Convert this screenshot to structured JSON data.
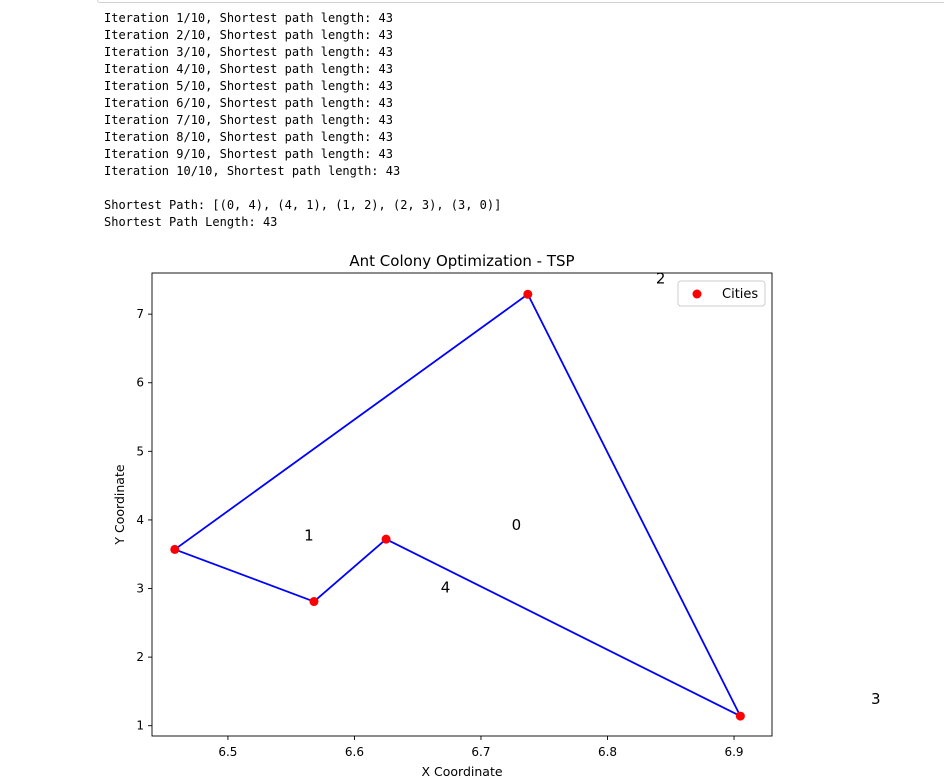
{
  "log": {
    "lines": [
      "Iteration 1/10, Shortest path length: 43",
      "Iteration 2/10, Shortest path length: 43",
      "Iteration 3/10, Shortest path length: 43",
      "Iteration 4/10, Shortest path length: 43",
      "Iteration 5/10, Shortest path length: 43",
      "Iteration 6/10, Shortest path length: 43",
      "Iteration 7/10, Shortest path length: 43",
      "Iteration 8/10, Shortest path length: 43",
      "Iteration 9/10, Shortest path length: 43",
      "Iteration 10/10, Shortest path length: 43",
      "",
      "Shortest Path: [(0, 4), (4, 1), (1, 2), (2, 3), (3, 0)]",
      "Shortest Path Length: 43"
    ]
  },
  "chart_data": {
    "type": "scatter",
    "title": "Ant Colony Optimization - TSP",
    "xlabel": "X Coordinate",
    "ylabel": "Y Coordinate",
    "xlim": [
      6.44,
      6.93
    ],
    "ylim": [
      0.85,
      7.6
    ],
    "xticks": [
      6.5,
      6.6,
      6.7,
      6.8,
      6.9
    ],
    "xtick_labels": [
      "6.5",
      "6.6",
      "6.7",
      "6.8",
      "6.9"
    ],
    "yticks": [
      1,
      2,
      3,
      4,
      5,
      6,
      7
    ],
    "ytick_labels": [
      "1",
      "2",
      "3",
      "4",
      "5",
      "6",
      "7"
    ],
    "legend": {
      "placement": "top-right",
      "entries": [
        {
          "label": "Cities",
          "color": "#ff0000"
        }
      ]
    },
    "points": [
      {
        "x": 6.458,
        "y": 3.57
      },
      {
        "x": 6.568,
        "y": 2.81
      },
      {
        "x": 6.625,
        "y": 3.72
      },
      {
        "x": 6.737,
        "y": 7.29
      },
      {
        "x": 6.905,
        "y": 1.14
      }
    ],
    "path": [
      {
        "x": 6.458,
        "y": 3.57
      },
      {
        "x": 6.568,
        "y": 2.81
      },
      {
        "x": 6.625,
        "y": 3.72
      },
      {
        "x": 6.905,
        "y": 1.14
      },
      {
        "x": 6.737,
        "y": 7.29
      },
      {
        "x": 6.458,
        "y": 3.57
      }
    ],
    "annotations": [
      {
        "text": "0",
        "x": 6.728,
        "y": 3.85
      },
      {
        "text": "1",
        "x": 6.564,
        "y": 3.7
      },
      {
        "text": "2",
        "x": 6.842,
        "y": 7.45
      },
      {
        "text": "3",
        "x": 7.012,
        "y": 1.32
      },
      {
        "text": "4",
        "x": 6.672,
        "y": 2.94
      }
    ],
    "colors": {
      "path": "#0000ff",
      "points": "#ff0000"
    }
  }
}
